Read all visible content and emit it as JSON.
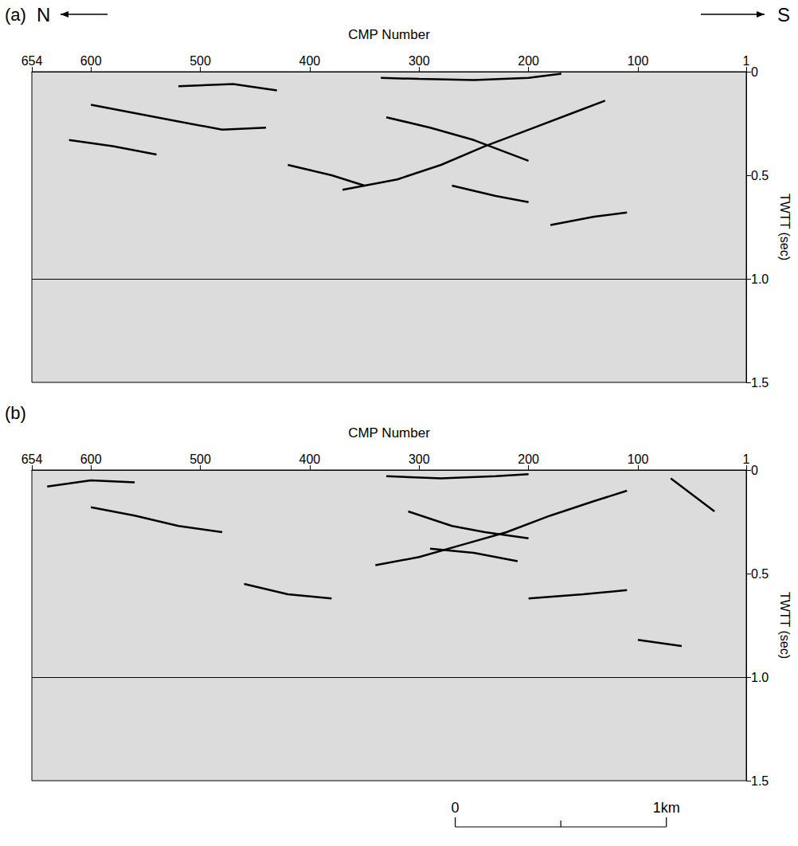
{
  "chart_data": [
    {
      "type": "line",
      "panel": "(a)",
      "x_label": "CMP Number",
      "y_label": "TWTT (sec)",
      "north_label": "N",
      "south_label": "S",
      "xlim": [
        654,
        1
      ],
      "xticks": [
        654,
        600,
        500,
        400,
        300,
        200,
        100,
        1
      ],
      "ylim": [
        1.5,
        0
      ],
      "yticks": [
        0,
        0.5,
        {
          "value": 1,
          "label": "1.0"
        },
        1.5
      ],
      "grid": false,
      "hline": 1,
      "series": [
        {
          "color": "#000000",
          "x": [
            335,
            300,
            250,
            200,
            170
          ],
          "values": [
            0.03,
            0.035,
            0.04,
            0.03,
            0.01
          ]
        },
        {
          "color": "#000000",
          "x": [
            330,
            290,
            250,
            225,
            200
          ],
          "values": [
            0.22,
            0.27,
            0.33,
            0.38,
            0.43
          ]
        },
        {
          "color": "#000000",
          "x": [
            370,
            320,
            280,
            240,
            200,
            160,
            130
          ],
          "values": [
            0.57,
            0.52,
            0.45,
            0.36,
            0.28,
            0.2,
            0.14
          ]
        },
        {
          "color": "#000000",
          "x": [
            600,
            560,
            520,
            480,
            440
          ],
          "values": [
            0.16,
            0.2,
            0.24,
            0.28,
            0.27
          ]
        },
        {
          "color": "#000000",
          "x": [
            620,
            580,
            540
          ],
          "values": [
            0.33,
            0.36,
            0.4
          ]
        },
        {
          "color": "#000000",
          "x": [
            420,
            380,
            350
          ],
          "values": [
            0.45,
            0.5,
            0.55
          ]
        },
        {
          "color": "#000000",
          "x": [
            180,
            140,
            110
          ],
          "values": [
            0.74,
            0.7,
            0.68
          ]
        },
        {
          "color": "#000000",
          "x": [
            520,
            470,
            430
          ],
          "values": [
            0.07,
            0.06,
            0.09
          ]
        },
        {
          "color": "#000000",
          "x": [
            270,
            230,
            200
          ],
          "values": [
            0.55,
            0.6,
            0.63
          ]
        }
      ]
    },
    {
      "type": "line",
      "panel": "(b)",
      "x_label": "CMP Number",
      "y_label": "TWTT (sec)",
      "xlim": [
        654,
        1
      ],
      "xticks": [
        654,
        600,
        500,
        400,
        300,
        200,
        100,
        1
      ],
      "ylim": [
        1.5,
        0
      ],
      "yticks": [
        0,
        0.5,
        {
          "value": 1,
          "label": "1.0"
        },
        1.5
      ],
      "grid": false,
      "hline": 1,
      "scale_bar": {
        "start_label": "0",
        "end_label": "1km",
        "start_cmp": 267,
        "end_cmp": 74
      },
      "series": [
        {
          "color": "#000000",
          "x": [
            330,
            280,
            230,
            200
          ],
          "values": [
            0.03,
            0.04,
            0.03,
            0.02
          ]
        },
        {
          "color": "#000000",
          "x": [
            310,
            270,
            240,
            200
          ],
          "values": [
            0.2,
            0.27,
            0.3,
            0.33
          ]
        },
        {
          "color": "#000000",
          "x": [
            340,
            300,
            260,
            220,
            180,
            140,
            110
          ],
          "values": [
            0.46,
            0.42,
            0.36,
            0.3,
            0.22,
            0.15,
            0.1
          ]
        },
        {
          "color": "#000000",
          "x": [
            290,
            250,
            210
          ],
          "values": [
            0.38,
            0.4,
            0.44
          ]
        },
        {
          "color": "#000000",
          "x": [
            600,
            560,
            520,
            480
          ],
          "values": [
            0.18,
            0.22,
            0.27,
            0.3
          ]
        },
        {
          "color": "#000000",
          "x": [
            640,
            600,
            560
          ],
          "values": [
            0.08,
            0.05,
            0.06
          ]
        },
        {
          "color": "#000000",
          "x": [
            70,
            50,
            30
          ],
          "values": [
            0.04,
            0.12,
            0.2
          ]
        },
        {
          "color": "#000000",
          "x": [
            200,
            150,
            110
          ],
          "values": [
            0.62,
            0.6,
            0.58
          ]
        },
        {
          "color": "#000000",
          "x": [
            460,
            420,
            380
          ],
          "values": [
            0.55,
            0.6,
            0.62
          ]
        },
        {
          "color": "#000000",
          "x": [
            100,
            60
          ],
          "values": [
            0.82,
            0.85
          ]
        }
      ]
    }
  ]
}
